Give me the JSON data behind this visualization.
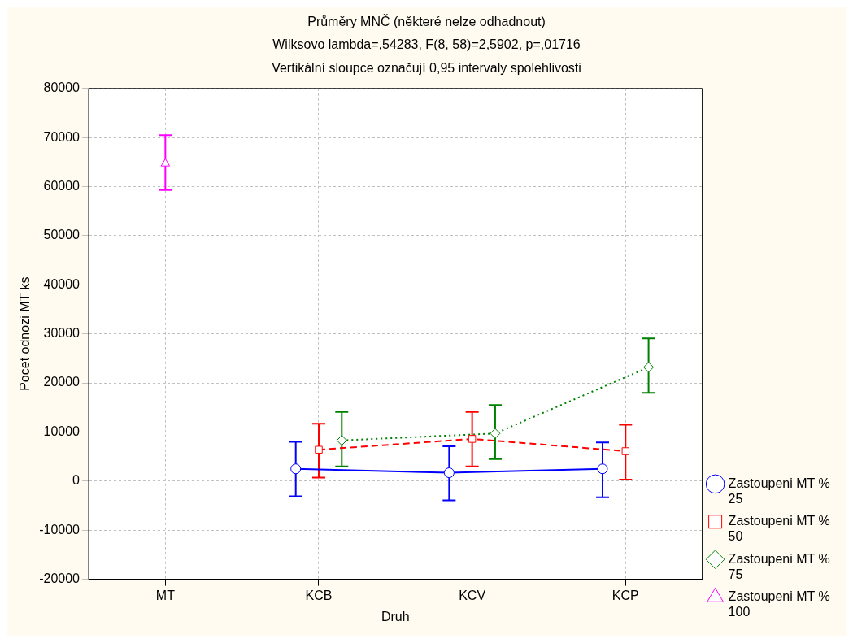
{
  "chart_data": {
    "type": "line",
    "title": "Průměry MNČ (některé nelze odhadnout)",
    "subtitle": "Wilksovo lambda=,54283, F(8, 58)=2,5902, p=,01716",
    "annotations": [
      "Vertikální sloupce označují 0,95 intervaly spolehlivosti"
    ],
    "xlabel": "Druh",
    "ylabel": "Pocet odnozi MT ks",
    "categories": [
      "MT",
      "KCB",
      "KCV",
      "KCP"
    ],
    "ylim": [
      -20000,
      80000
    ],
    "yticks": [
      -20000,
      -10000,
      0,
      10000,
      20000,
      30000,
      40000,
      50000,
      60000,
      70000,
      80000
    ],
    "grid": true,
    "legend": "bottom right",
    "series": [
      {
        "name": "Zastoupeni MT % 25",
        "color": "#0000ff",
        "marker": "circle",
        "line_style": "solid",
        "values": [
          null,
          2500,
          1700,
          2500
        ],
        "errors": [
          null,
          [
            -3100,
            8000
          ],
          [
            -3900,
            7100
          ],
          [
            -3300,
            7900
          ]
        ]
      },
      {
        "name": "Zastoupeni MT % 50",
        "color": "#ff0000",
        "marker": "square",
        "line_style": "dashed",
        "values": [
          null,
          6400,
          8600,
          6100
        ],
        "errors": [
          null,
          [
            700,
            11700
          ],
          [
            3000,
            14100
          ],
          [
            300,
            11500
          ]
        ]
      },
      {
        "name": "Zastoupeni MT % 75",
        "color": "#008000",
        "marker": "diamond",
        "line_style": "dotted",
        "values": [
          null,
          8300,
          9700,
          23200
        ],
        "errors": [
          null,
          [
            3000,
            14100
          ],
          [
            4500,
            15500
          ],
          [
            18000,
            29100
          ]
        ]
      },
      {
        "name": "Zastoupeni MT % 100",
        "color": "#ff00ff",
        "marker": "triangle",
        "line_style": "solid",
        "values": [
          64700,
          null,
          null,
          null
        ],
        "errors": [
          [
            59300,
            70500
          ],
          null,
          null,
          null
        ]
      }
    ]
  }
}
